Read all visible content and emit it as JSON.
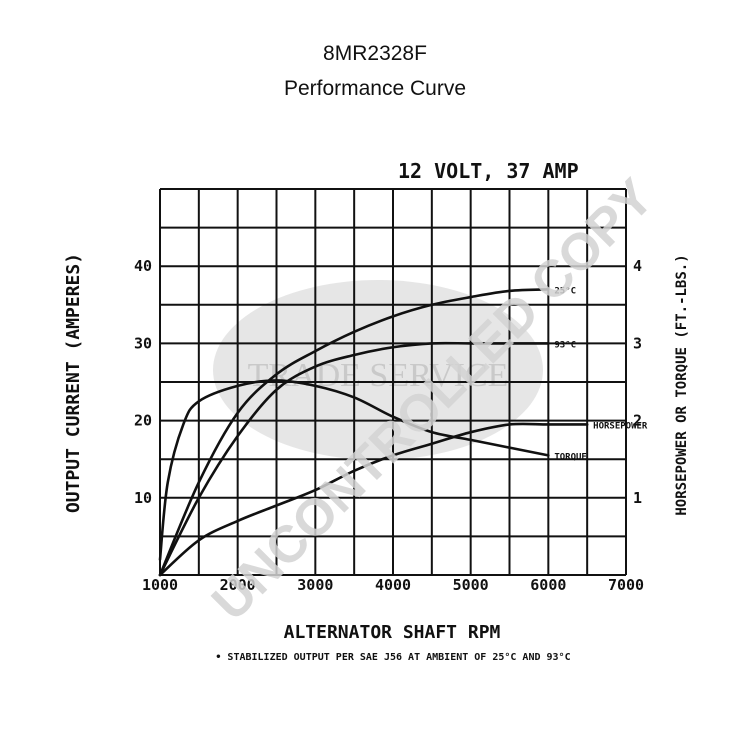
{
  "header": {
    "title": "8MR2328F",
    "subtitle": "Performance Curve"
  },
  "watermark": {
    "diagonal_text": "UNCONTROLLED COPY",
    "center_text": "TRADE SERVICE"
  },
  "chart_data": {
    "type": "line",
    "title": "12 VOLT, 37 AMP",
    "xlabel": "ALTERNATOR SHAFT RPM",
    "ylabel": "OUTPUT CURRENT (AMPERES)",
    "y2label": "HORSEPOWER OR TORQUE (FT.-LBS.)",
    "footnote": "• STABILIZED OUTPUT PER SAE J56 AT AMBIENT OF 25°C AND 93°C",
    "xlim": [
      1000,
      7000
    ],
    "ylim": [
      0,
      50
    ],
    "y2lim": [
      0,
      5
    ],
    "x_ticks": [
      1000,
      2000,
      3000,
      4000,
      5000,
      6000,
      7000
    ],
    "y_ticks": [
      10,
      20,
      30,
      40
    ],
    "y2_ticks": [
      1,
      2,
      3,
      4
    ],
    "grid": true,
    "series": [
      {
        "name": "25°C",
        "values": [
          [
            1000,
            0
          ],
          [
            1500,
            12
          ],
          [
            2000,
            21
          ],
          [
            2500,
            26
          ],
          [
            3000,
            29
          ],
          [
            3500,
            31.5
          ],
          [
            4000,
            33.5
          ],
          [
            4500,
            35
          ],
          [
            5000,
            36
          ],
          [
            5500,
            36.8
          ],
          [
            6000,
            37
          ]
        ]
      },
      {
        "name": "93°C",
        "values": [
          [
            1000,
            0
          ],
          [
            1500,
            10
          ],
          [
            2000,
            18
          ],
          [
            2500,
            24
          ],
          [
            3000,
            27
          ],
          [
            3500,
            28.5
          ],
          [
            4000,
            29.5
          ],
          [
            4500,
            30
          ],
          [
            5000,
            30
          ],
          [
            5500,
            30
          ],
          [
            6000,
            30
          ]
        ]
      },
      {
        "name": "HORSEPOWER",
        "values": [
          [
            1000,
            0
          ],
          [
            1500,
            4.5
          ],
          [
            2000,
            7
          ],
          [
            2500,
            9
          ],
          [
            3000,
            11
          ],
          [
            3500,
            13.5
          ],
          [
            4000,
            15.5
          ],
          [
            4500,
            17
          ],
          [
            5000,
            18.5
          ],
          [
            5500,
            19.5
          ],
          [
            6000,
            19.5
          ],
          [
            6500,
            19.5
          ]
        ]
      },
      {
        "name": "TORQUE",
        "values": [
          [
            1000,
            2
          ],
          [
            1100,
            12
          ],
          [
            1300,
            19.5
          ],
          [
            1500,
            22.5
          ],
          [
            2000,
            24.5
          ],
          [
            2500,
            25.2
          ],
          [
            3000,
            24.5
          ],
          [
            3500,
            23
          ],
          [
            4000,
            20.5
          ],
          [
            4500,
            18.5
          ],
          [
            5000,
            17.5
          ],
          [
            5500,
            16.5
          ],
          [
            6000,
            15.5
          ]
        ]
      }
    ]
  }
}
